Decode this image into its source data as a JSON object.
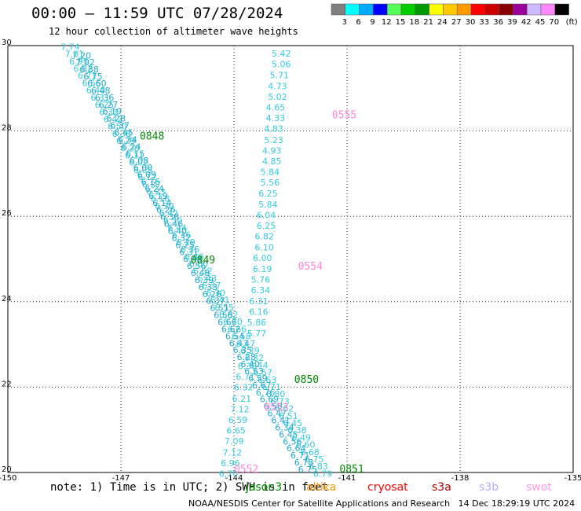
{
  "header": {
    "title": "00:00 – 11:59 UTC 07/28/2024",
    "subtitle": "12 hour collection of altimeter wave heights"
  },
  "color_scale": {
    "unit": "(ft)",
    "bins": [
      {
        "label": "3",
        "color": "#7f7f7f"
      },
      {
        "label": "6",
        "color": "#00ffff"
      },
      {
        "label": "9",
        "color": "#00aaff"
      },
      {
        "label": "12",
        "color": "#0000ff"
      },
      {
        "label": "15",
        "color": "#55ff55"
      },
      {
        "label": "18",
        "color": "#00cc00"
      },
      {
        "label": "21",
        "color": "#009900"
      },
      {
        "label": "24",
        "color": "#ffff00"
      },
      {
        "label": "27",
        "color": "#ffcc00"
      },
      {
        "label": "30",
        "color": "#ff9900"
      },
      {
        "label": "33",
        "color": "#ff0000"
      },
      {
        "label": "36",
        "color": "#cc0000"
      },
      {
        "label": "39",
        "color": "#880000"
      },
      {
        "label": "42",
        "color": "#990099"
      },
      {
        "label": "45",
        "color": "#ccbbff"
      },
      {
        "label": "70",
        "color": "#ff88ff"
      },
      {
        "label": "",
        "color": "#000000"
      }
    ]
  },
  "chart_data": {
    "type": "scatter",
    "title": "00:00 – 11:59 UTC 07/28/2024",
    "subtitle": "12 hour collection of altimeter wave heights",
    "xlim": [
      -150,
      -135
    ],
    "ylim": [
      20,
      30
    ],
    "xticks": [
      "-150",
      "-147",
      "-144",
      "-141",
      "-138",
      "-135"
    ],
    "yticks": [
      "20",
      "22",
      "24",
      "26",
      "28",
      "30"
    ],
    "grid": true,
    "tracks": [
      {
        "name": "jason3",
        "color": "#33ccdd",
        "points": [
          {
            "lon": -143.0,
            "lat": 29.74,
            "v": "5.42"
          },
          {
            "lon": -143.0,
            "lat": 29.49,
            "v": "5.06"
          },
          {
            "lon": -143.05,
            "lat": 29.24,
            "v": "5.71"
          },
          {
            "lon": -143.1,
            "lat": 28.98,
            "v": "4.73"
          },
          {
            "lon": -143.1,
            "lat": 28.73,
            "v": "5.02"
          },
          {
            "lon": -143.15,
            "lat": 28.48,
            "v": "4.65"
          },
          {
            "lon": -143.15,
            "lat": 28.23,
            "v": "4.33"
          },
          {
            "lon": -143.2,
            "lat": 27.98,
            "v": "4.83"
          },
          {
            "lon": -143.2,
            "lat": 27.72,
            "v": "5.23"
          },
          {
            "lon": -143.25,
            "lat": 27.47,
            "v": "4.93"
          },
          {
            "lon": -143.25,
            "lat": 27.22,
            "v": "4.85"
          },
          {
            "lon": -143.3,
            "lat": 26.97,
            "v": "5.84"
          },
          {
            "lon": -143.3,
            "lat": 26.72,
            "v": "5.56"
          },
          {
            "lon": -143.35,
            "lat": 26.46,
            "v": "6.25"
          },
          {
            "lon": -143.35,
            "lat": 26.21,
            "v": "5.84"
          },
          {
            "lon": -143.4,
            "lat": 25.96,
            "v": "6.04"
          },
          {
            "lon": -143.4,
            "lat": 25.71,
            "v": "6.25"
          },
          {
            "lon": -143.45,
            "lat": 25.46,
            "v": "6.82"
          },
          {
            "lon": -143.45,
            "lat": 25.2,
            "v": "6.10"
          },
          {
            "lon": -143.5,
            "lat": 24.95,
            "v": "6.00"
          },
          {
            "lon": -143.5,
            "lat": 24.7,
            "v": "6.19"
          },
          {
            "lon": -143.55,
            "lat": 24.45,
            "v": "5.76"
          },
          {
            "lon": -143.55,
            "lat": 24.2,
            "v": "6.34"
          },
          {
            "lon": -143.6,
            "lat": 23.94,
            "v": "6.31"
          },
          {
            "lon": -143.6,
            "lat": 23.69,
            "v": "6.16"
          },
          {
            "lon": -143.65,
            "lat": 23.44,
            "v": "5.86"
          },
          {
            "lon": -143.65,
            "lat": 23.19,
            "v": "5.77"
          },
          {
            "lon": -143.9,
            "lat": 22.42,
            "v": "6.30"
          },
          {
            "lon": -143.95,
            "lat": 22.17,
            "v": "6.71"
          },
          {
            "lon": -144.0,
            "lat": 21.92,
            "v": "6.32"
          },
          {
            "lon": -144.05,
            "lat": 21.66,
            "v": "6.21"
          },
          {
            "lon": -144.1,
            "lat": 21.41,
            "v": "7.12"
          },
          {
            "lon": -144.15,
            "lat": 21.16,
            "v": "6.59"
          },
          {
            "lon": -144.2,
            "lat": 20.91,
            "v": "6.65"
          },
          {
            "lon": -144.25,
            "lat": 20.66,
            "v": "7.09"
          },
          {
            "lon": -144.3,
            "lat": 20.4,
            "v": "7.12"
          },
          {
            "lon": -144.35,
            "lat": 20.15,
            "v": "6.96"
          },
          {
            "lon": -144.4,
            "lat": 19.9,
            "v": "6.70"
          }
        ]
      }
    ],
    "pass_labels": [
      {
        "text": "0555",
        "lon": -141.4,
        "lat": 28.3,
        "color": "#ff88dd"
      },
      {
        "text": "0554",
        "lon": -142.3,
        "lat": 24.75,
        "color": "#ff88dd"
      },
      {
        "text": "0553",
        "lon": -143.2,
        "lat": 21.45,
        "color": "#ff88dd"
      },
      {
        "text": "0552",
        "lon": -144.0,
        "lat": 20.0,
        "color": "#ff88dd"
      },
      {
        "text": "0848",
        "lon": -146.5,
        "lat": 27.8,
        "color": "#008800"
      },
      {
        "text": "0849",
        "lon": -145.15,
        "lat": 24.9,
        "color": "#008800"
      },
      {
        "text": "0850",
        "lon": -142.4,
        "lat": 22.1,
        "color": "#008800"
      },
      {
        "text": "0851",
        "lon": -141.2,
        "lat": 20.0,
        "color": "#008800"
      }
    ],
    "dense_track_a": {
      "color": "#33ccdd",
      "start": [
        -148.6,
        29.9
      ],
      "end": [
        -141.9,
        19.9
      ],
      "values": [
        "7.74",
        "7.01",
        "6.95",
        "6.82",
        "6.71",
        "6.55",
        "6.40",
        "6.31",
        "6.25",
        "6.33",
        "6.42",
        "6.50",
        "6.38",
        "6.29",
        "6.20",
        "6.11",
        "6.02",
        "6.05",
        "6.12",
        "6.27",
        "6.23",
        "6.18",
        "6.30",
        "6.42",
        "6.50",
        "6.44",
        "6.36",
        "6.29",
        "6.35",
        "6.48",
        "6.60",
        "6.52",
        "6.43",
        "6.37",
        "6.30",
        "6.41",
        "6.55",
        "6.62",
        "6.70",
        "6.66",
        "6.58",
        "6.47",
        "6.39",
        "6.32",
        "6.44",
        "6.57",
        "6.63",
        "6.71",
        "6.80",
        "6.73",
        "6.62",
        "6.51",
        "6.45",
        "6.38",
        "6.49",
        "6.60",
        "6.68",
        "6.75",
        "6.83",
        "6.79"
      ]
    },
    "dense_track_b": {
      "color": "#22aacc",
      "start": [
        -148.3,
        29.7
      ],
      "end": [
        -142.3,
        20.0
      ],
      "values": [
        "7.20",
        "7.02",
        "6.88",
        "6.75",
        "6.60",
        "6.48",
        "6.36",
        "6.27",
        "6.19",
        "6.28",
        "6.37",
        "6.45",
        "6.34",
        "6.24",
        "6.15",
        "6.08",
        "6.00",
        "6.09",
        "6.16",
        "6.24",
        "6.19",
        "6.14",
        "6.26",
        "6.38",
        "6.46",
        "6.40",
        "6.32",
        "6.25",
        "6.31",
        "6.44",
        "6.56",
        "6.48",
        "6.39",
        "6.33",
        "6.26",
        "6.37",
        "6.51",
        "6.58",
        "6.66",
        "6.62",
        "6.54",
        "6.43",
        "6.35",
        "6.28",
        "6.40",
        "6.53",
        "6.59",
        "6.67",
        "6.76",
        "6.69",
        "6.58",
        "6.47",
        "6.41",
        "6.34",
        "6.45",
        "6.56",
        "6.64",
        "6.71",
        "6.78",
        "6.75"
      ]
    }
  },
  "footer": {
    "note": "note: 1) Time is in UTC; 2) SWH is in feet",
    "satellites": [
      {
        "name": "jason3",
        "color": "#008800"
      },
      {
        "name": "altika",
        "color": "#ff9900"
      },
      {
        "name": "cryosat",
        "color": "#ff0000"
      },
      {
        "name": "s3a",
        "color": "#aa0000"
      },
      {
        "name": "s3b",
        "color": "#bbaaff"
      },
      {
        "name": "swot",
        "color": "#ff99ee"
      }
    ],
    "credit": "NOAA/NESDIS Center for Satellite Applications and Research   14 Dec 18:29:19 UTC 2024"
  }
}
